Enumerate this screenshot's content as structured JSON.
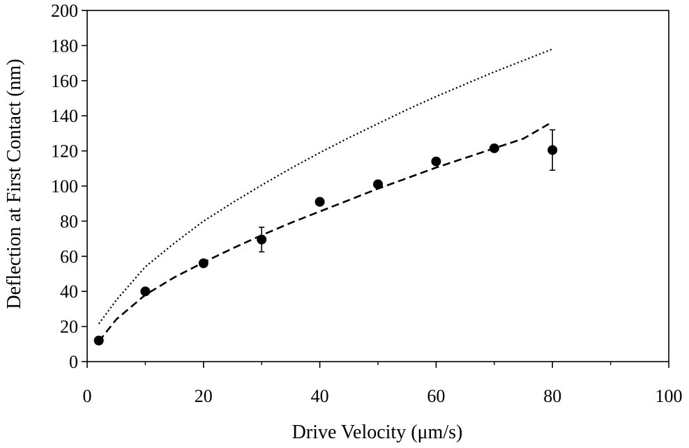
{
  "chart_data": {
    "type": "scatter",
    "xlabel": "Drive Velocity (μm/s)",
    "ylabel": "Deflection at First Contact (nm)",
    "xlim": [
      0,
      100
    ],
    "ylim": [
      0,
      200
    ],
    "x_major_ticks": [
      0,
      20,
      40,
      60,
      80,
      100
    ],
    "x_minor_ticks": [
      10,
      30,
      50,
      70,
      90
    ],
    "y_ticks": [
      0,
      20,
      40,
      60,
      80,
      100,
      120,
      140,
      160,
      180,
      200
    ],
    "x_tick_labels": [
      "0",
      "20",
      "40",
      "60",
      "80",
      "100"
    ],
    "y_tick_labels": [
      "0",
      "20",
      "40",
      "60",
      "80",
      "100",
      "120",
      "140",
      "160",
      "180",
      "200"
    ],
    "grid": false,
    "series": [
      {
        "kind": "points",
        "marker": "filled-circle",
        "color": "#000000",
        "x": [
          2,
          10,
          20,
          30,
          40,
          50,
          60,
          70,
          80
        ],
        "y": [
          12,
          40,
          56,
          69.5,
          91,
          101,
          114,
          121.5,
          120.5
        ],
        "error": [
          0,
          0,
          0,
          7,
          0,
          0,
          0,
          0,
          11.5
        ]
      },
      {
        "kind": "line",
        "style": "dashed",
        "color": "#000000",
        "x": [
          2,
          5,
          10,
          15,
          20,
          25,
          30,
          35,
          40,
          45,
          50,
          55,
          60,
          65,
          70,
          75,
          80
        ],
        "y": [
          11.5,
          24,
          38,
          48,
          56.5,
          64.5,
          72,
          79,
          85.5,
          92,
          98.5,
          104.5,
          110.5,
          116,
          121.5,
          127,
          136.5
        ]
      },
      {
        "kind": "line",
        "style": "dotted",
        "color": "#000000",
        "x": [
          2,
          5,
          10,
          15,
          20,
          25,
          30,
          35,
          40,
          45,
          50,
          55,
          60,
          65,
          70,
          75,
          80
        ],
        "y": [
          21.5,
          35,
          54,
          67.5,
          80,
          90.5,
          100.5,
          110,
          119,
          127.5,
          135.5,
          143.5,
          151,
          158,
          165,
          171.5,
          178
        ]
      }
    ]
  }
}
